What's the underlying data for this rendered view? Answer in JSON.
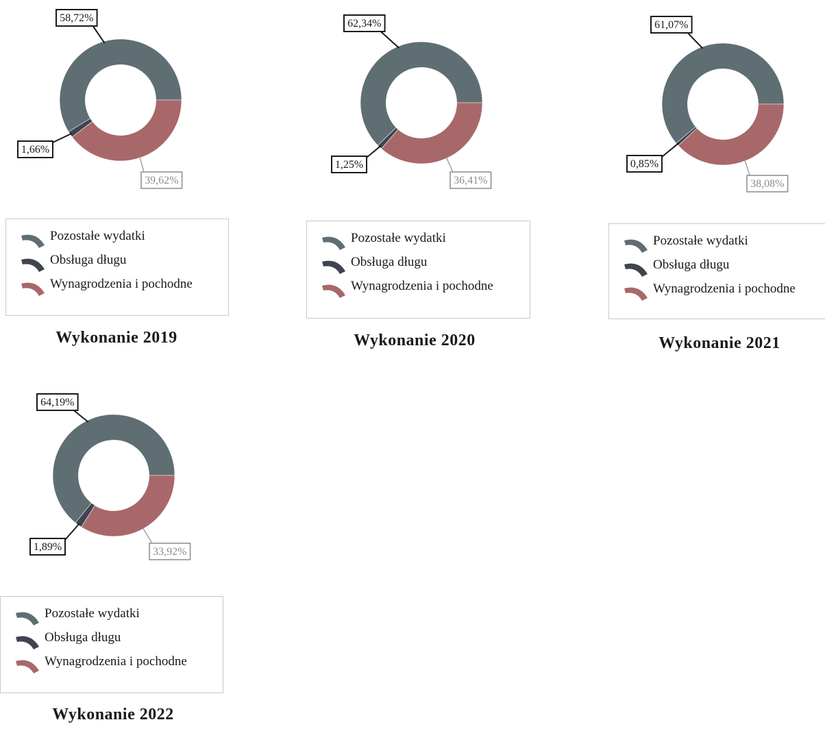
{
  "legend_labels": [
    "Pozostałe wydatki",
    "Obsługa długu",
    "Wynagrodzenia i pochodne"
  ],
  "colors": {
    "pozostale": "#5f6e72",
    "obsluga": "#3f4450",
    "wynagrodzenia": "#a8686a",
    "label_dark": "#1a1a1a",
    "label_gray": "#8c8c8c"
  },
  "chart_data": [
    {
      "type": "pie",
      "title": "Wykonanie 2019",
      "categories": [
        "Pozostałe wydatki",
        "Obsługa długu",
        "Wynagrodzenia i pochodne"
      ],
      "values": [
        58.72,
        1.66,
        39.62
      ],
      "data_labels": [
        "58,72%",
        "1,66%",
        "39,62%"
      ]
    },
    {
      "type": "pie",
      "title": "Wykonanie 2020",
      "categories": [
        "Pozostałe wydatki",
        "Obsługa długu",
        "Wynagrodzenia i pochodne"
      ],
      "values": [
        62.34,
        1.25,
        36.41
      ],
      "data_labels": [
        "62,34%",
        "1,25%",
        "36,41%"
      ]
    },
    {
      "type": "pie",
      "title": "Wykonanie 2021",
      "categories": [
        "Pozostałe wydatki",
        "Obsługa długu",
        "Wynagrodzenia i pochodne"
      ],
      "values": [
        61.07,
        0.85,
        38.08
      ],
      "data_labels": [
        "61,07%",
        "0,85%",
        "38,08%"
      ]
    },
    {
      "type": "pie",
      "title": "Wykonanie 2022",
      "categories": [
        "Pozostałe wydatki",
        "Obsługa długu",
        "Wynagrodzenia i pochodne"
      ],
      "values": [
        64.19,
        1.89,
        33.92
      ],
      "data_labels": [
        "64,19%",
        "1,89%",
        "33,92%"
      ]
    }
  ]
}
